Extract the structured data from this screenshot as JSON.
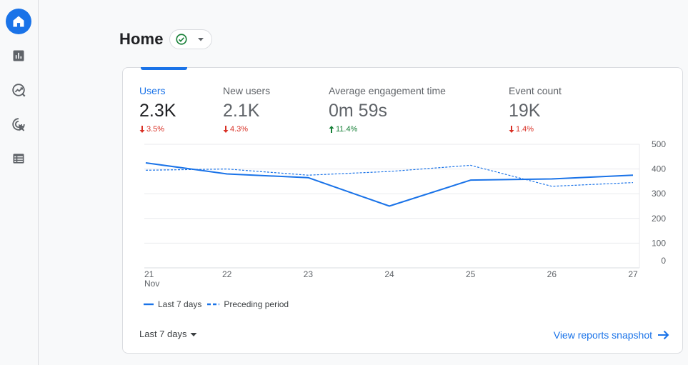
{
  "nav": {
    "items": [
      {
        "name": "home",
        "icon": "home-icon",
        "active": true
      },
      {
        "name": "reports",
        "icon": "bar-chart-icon",
        "active": false
      },
      {
        "name": "explore",
        "icon": "explore-icon",
        "active": false
      },
      {
        "name": "advertising",
        "icon": "advertising-icon",
        "active": false
      },
      {
        "name": "configure",
        "icon": "list-icon",
        "active": false
      }
    ]
  },
  "header": {
    "title": "Home",
    "status_icon": "check-circle-icon"
  },
  "metrics": [
    {
      "label": "Users",
      "value": "2.3K",
      "delta": "3.5%",
      "direction": "down",
      "active": true
    },
    {
      "label": "New users",
      "value": "2.1K",
      "delta": "4.3%",
      "direction": "down",
      "active": false
    },
    {
      "label": "Average engagement time",
      "value": "0m 59s",
      "delta": "11.4%",
      "direction": "up",
      "active": false
    },
    {
      "label": "Event count",
      "value": "19K",
      "delta": "1.4%",
      "direction": "down",
      "active": false
    }
  ],
  "chart_data": {
    "type": "line",
    "x": [
      "21",
      "22",
      "23",
      "24",
      "25",
      "26",
      "27"
    ],
    "x_sublabel_first": "Nov",
    "y_ticks": [
      "500",
      "400",
      "300",
      "200",
      "100",
      "0"
    ],
    "ylim": [
      0,
      500
    ],
    "grid": true,
    "legend_position": "bottom-left",
    "series": [
      {
        "name": "Last 7 days",
        "style": "solid",
        "color": "#1a73e8",
        "values": [
          425,
          380,
          365,
          250,
          355,
          360,
          375
        ]
      },
      {
        "name": "Preceding period",
        "style": "dashed",
        "color": "#1a73e8",
        "values": [
          395,
          400,
          375,
          390,
          415,
          330,
          345
        ]
      }
    ]
  },
  "footer": {
    "date_range": "Last 7 days",
    "link": "View reports snapshot"
  },
  "colors": {
    "accent": "#1a73e8",
    "negative": "#d93025",
    "positive": "#188038"
  }
}
